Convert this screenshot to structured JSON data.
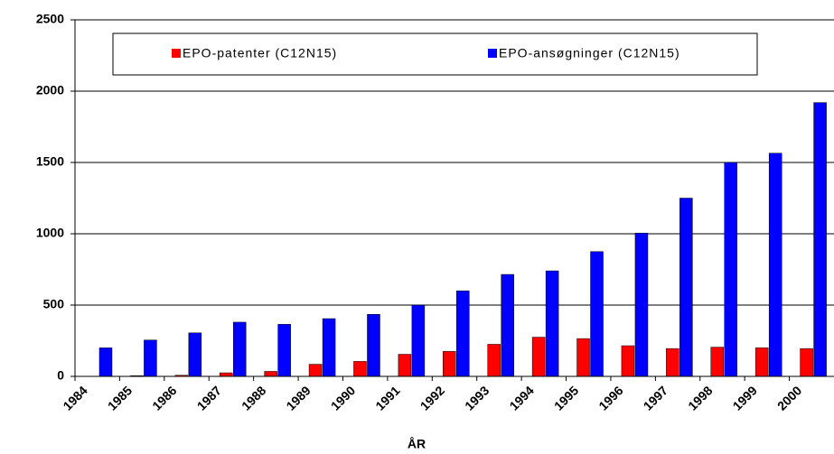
{
  "chart_data": {
    "type": "bar",
    "x_label": "ÅR",
    "categories": [
      "1984",
      "1985",
      "1986",
      "1987",
      "1988",
      "1989",
      "1990",
      "1991",
      "1992",
      "1993",
      "1994",
      "1995",
      "1996",
      "1997",
      "1998",
      "1999",
      "2000"
    ],
    "series": [
      {
        "name": "EPO-patenter (C12N15)",
        "color": "#ff0000",
        "values": [
          0,
          5,
          8,
          25,
          35,
          85,
          105,
          155,
          175,
          225,
          275,
          265,
          215,
          195,
          205,
          200,
          195
        ]
      },
      {
        "name": "EPO-ansøgninger (C12N15)",
        "color": "#0000ff",
        "values": [
          200,
          255,
          305,
          380,
          365,
          405,
          435,
          500,
          600,
          715,
          740,
          875,
          1005,
          1250,
          1500,
          1565,
          1920
        ]
      }
    ],
    "ylim": [
      0,
      2500
    ],
    "yticks": [
      0,
      500,
      1000,
      1500,
      2000,
      2500
    ],
    "grid": true
  }
}
